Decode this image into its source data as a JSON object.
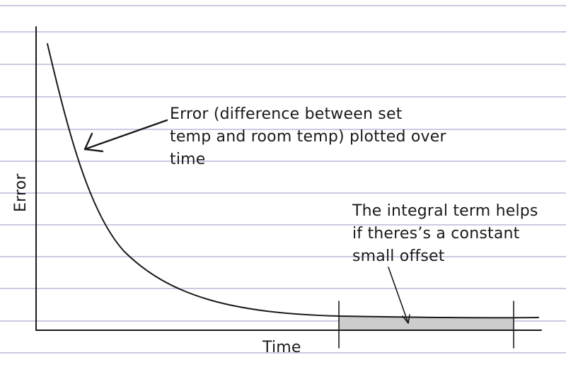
{
  "diagram": {
    "y_axis_label": "Error",
    "x_axis_label": "Time",
    "error_note": {
      "lines": [
        "Error (difference between set",
        "temp and room temp) plotted over",
        "time"
      ]
    },
    "integral_note": {
      "lines": [
        "The integral term helps",
        "if theres’s a constant",
        "small offset"
      ]
    },
    "colors": {
      "ink": "#1a1a1a",
      "ruled_lines": "#b9b9d8",
      "shaded_offset": "#cccccc",
      "paper": "#ffffff"
    }
  }
}
